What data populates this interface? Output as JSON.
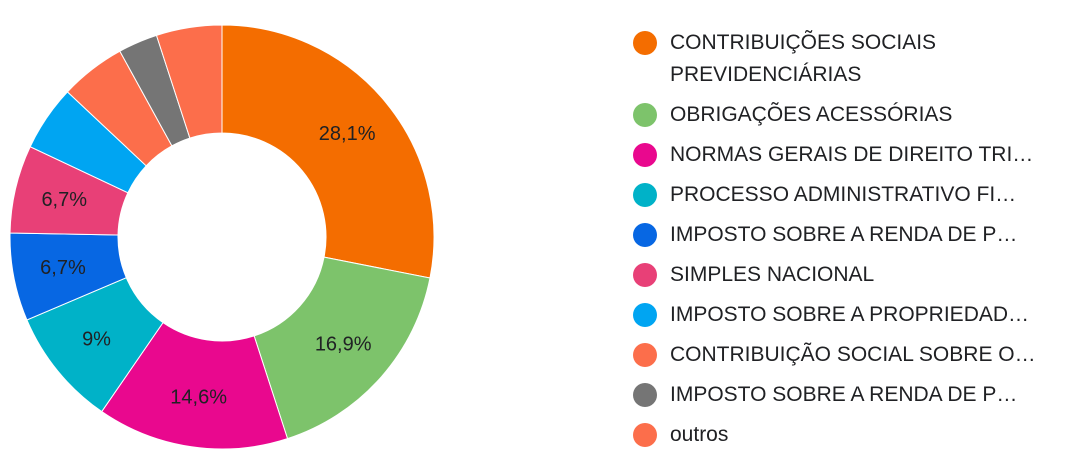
{
  "chart_data": {
    "type": "pie",
    "donut": true,
    "legend_position": "right",
    "labels": [
      "CONTRIBUIÇÕES SOCIAIS PREVIDENCIÁRIAS",
      "OBRIGAÇÕES ACESSÓRIAS",
      "NORMAS GERAIS DE DIREITO TRI…",
      "PROCESSO ADMINISTRATIVO FI…",
      "IMPOSTO SOBRE A RENDA DE P…",
      "SIMPLES NACIONAL",
      "IMPOSTO SOBRE A PROPRIEDAD…",
      "CONTRIBUIÇÃO SOCIAL SOBRE O…",
      "IMPOSTO SOBRE A RENDA DE P…",
      "outros"
    ],
    "values": [
      28.1,
      16.9,
      14.6,
      9.0,
      6.7,
      6.7,
      5.0,
      5.0,
      3.0,
      5.0
    ],
    "data_labels": [
      "28,1%",
      "16,9%",
      "14,6%",
      "9%",
      "6,7%",
      "6,7%",
      "",
      "",
      "",
      ""
    ],
    "colors": [
      "#F46D00",
      "#7DC36B",
      "#E9088E",
      "#00B2C8",
      "#0767E3",
      "#E84077",
      "#00A5F2",
      "#FC6E4B",
      "#757575",
      "#FC6E4B"
    ]
  }
}
